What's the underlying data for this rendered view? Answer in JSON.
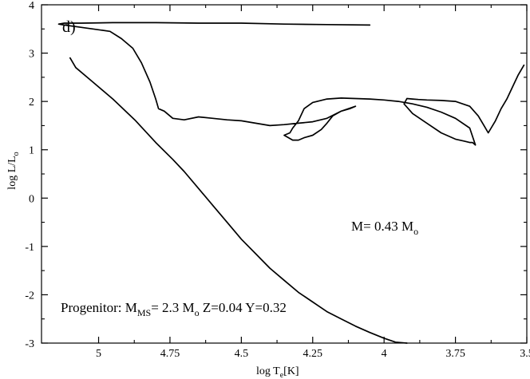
{
  "chart_data": {
    "type": "line",
    "xlabel": {
      "main": "log T",
      "sub": "e",
      "rest": "[K]"
    },
    "ylabel": {
      "main": "log L/L",
      "sub": "o"
    },
    "xlim": [
      5.2,
      3.5
    ],
    "ylim": [
      -3,
      4
    ],
    "x_reversed": true,
    "grid": false,
    "xticks": [
      {
        "value": 5,
        "label": "5"
      },
      {
        "value": 4.75,
        "label": "4.75"
      },
      {
        "value": 4.5,
        "label": "4.5"
      },
      {
        "value": 4.25,
        "label": "4.25"
      },
      {
        "value": 4,
        "label": "4"
      },
      {
        "value": 3.75,
        "label": "3.75"
      },
      {
        "value": 3.5,
        "label": "3.5"
      }
    ],
    "yticks": [
      {
        "value": 4,
        "label": "4"
      },
      {
        "value": 3,
        "label": "3"
      },
      {
        "value": 2,
        "label": "2"
      },
      {
        "value": 1,
        "label": "1"
      },
      {
        "value": 0,
        "label": "0"
      },
      {
        "value": -1,
        "label": "-1"
      },
      {
        "value": -2,
        "label": "-2"
      },
      {
        "value": -3,
        "label": "-3"
      }
    ],
    "panel_label": "d)",
    "annotations": {
      "mass": {
        "main": "M= 0.43 M",
        "sub": "o"
      },
      "progenitor": {
        "a": "Progenitor: M",
        "a_sub": "MS",
        "b": "= 2.3 M",
        "b_sub": "o",
        "c": " Z=0.04 Y=0.32"
      }
    },
    "series": [
      {
        "x": [
          3.51,
          3.53,
          3.55,
          3.57,
          3.59,
          3.61,
          3.63,
          3.635,
          3.65,
          3.67,
          3.7,
          3.75,
          3.8,
          3.85,
          3.88,
          3.9,
          3.92,
          3.93,
          3.9,
          3.85,
          3.8,
          3.75,
          3.72,
          3.7,
          3.69,
          3.68,
          3.7,
          3.75,
          3.8,
          3.85,
          3.9,
          3.95,
          4.0,
          4.05,
          4.1,
          4.15,
          4.2,
          4.25,
          4.28,
          4.3,
          4.32,
          4.33,
          4.35,
          4.32,
          4.3,
          4.28,
          4.25,
          4.22,
          4.2,
          4.18,
          4.15,
          4.12,
          4.1,
          4.15,
          4.2,
          4.25,
          4.3,
          4.35,
          4.4,
          4.45,
          4.5,
          4.55,
          4.6,
          4.65,
          4.7,
          4.74,
          4.77,
          4.79,
          4.8,
          4.82,
          4.85,
          4.88,
          4.92,
          4.96,
          5.02,
          5.08,
          5.12,
          5.14,
          5.12,
          5.06,
          4.95,
          4.8,
          4.65,
          4.5,
          4.35,
          4.2,
          4.05,
          4.06
        ],
        "y": [
          2.75,
          2.55,
          2.3,
          2.05,
          1.85,
          1.6,
          1.4,
          1.35,
          1.5,
          1.7,
          1.9,
          2.0,
          2.02,
          2.03,
          2.04,
          2.05,
          2.06,
          1.95,
          1.75,
          1.55,
          1.35,
          1.22,
          1.18,
          1.15,
          1.15,
          1.1,
          1.45,
          1.65,
          1.78,
          1.88,
          1.95,
          2.0,
          2.03,
          2.05,
          2.06,
          2.07,
          2.05,
          1.98,
          1.85,
          1.6,
          1.45,
          1.35,
          1.3,
          1.2,
          1.2,
          1.25,
          1.3,
          1.42,
          1.55,
          1.7,
          1.8,
          1.85,
          1.9,
          1.8,
          1.65,
          1.58,
          1.55,
          1.52,
          1.5,
          1.55,
          1.6,
          1.62,
          1.65,
          1.68,
          1.62,
          1.65,
          1.8,
          1.85,
          2.05,
          2.4,
          2.8,
          3.1,
          3.3,
          3.45,
          3.5,
          3.55,
          3.58,
          3.6,
          3.62,
          3.62,
          3.63,
          3.63,
          3.62,
          3.62,
          3.6,
          3.59,
          3.58,
          3.58
        ]
      },
      {
        "x": [
          5.1,
          5.08,
          5.02,
          4.95,
          4.87,
          4.8,
          4.74,
          4.7,
          4.65,
          4.6,
          4.55,
          4.5,
          4.45,
          4.4,
          4.35,
          4.3,
          4.25,
          4.2,
          4.15,
          4.1,
          4.05,
          4.0,
          3.96,
          3.92
        ],
        "y": [
          2.9,
          2.7,
          2.4,
          2.05,
          1.6,
          1.15,
          0.8,
          0.55,
          0.2,
          -0.15,
          -0.5,
          -0.85,
          -1.15,
          -1.45,
          -1.7,
          -1.95,
          -2.15,
          -2.35,
          -2.5,
          -2.65,
          -2.78,
          -2.9,
          -2.98,
          -3.0
        ]
      }
    ]
  }
}
